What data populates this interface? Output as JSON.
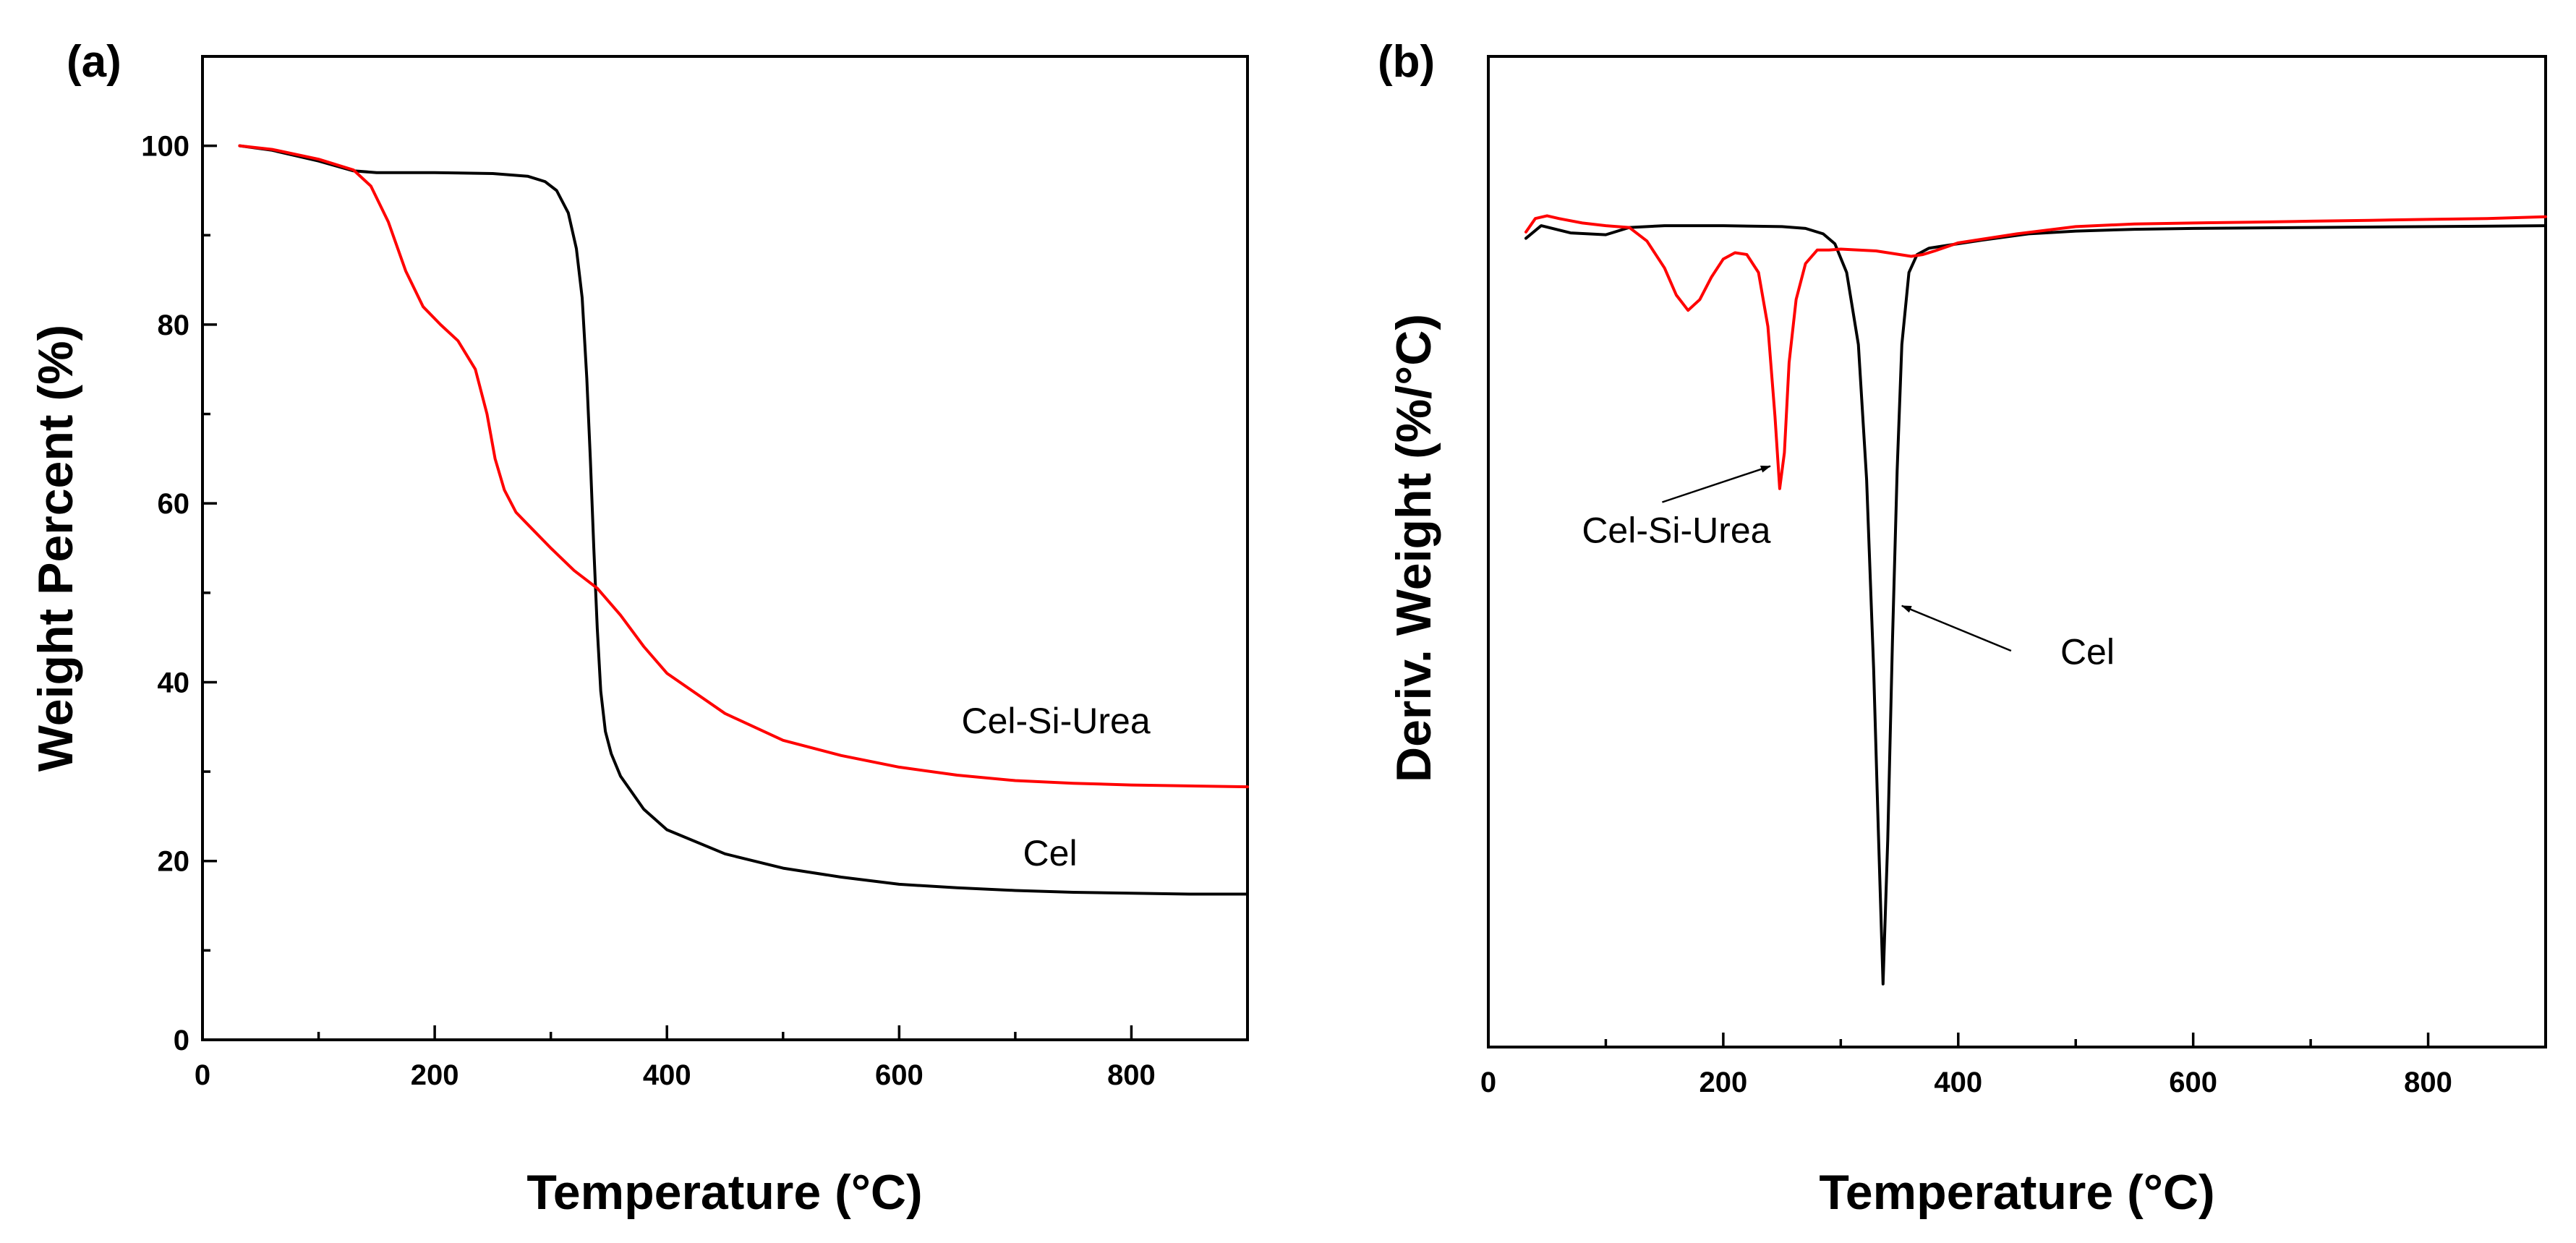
{
  "chart_data": [
    {
      "id": "a",
      "panel_label": "(a)",
      "type": "line",
      "title": "",
      "xlabel": "Temperature (°C)",
      "ylabel": "Weight Percent (%)",
      "xlim": [
        0,
        900
      ],
      "ylim": [
        0,
        110
      ],
      "xticks": [
        0,
        200,
        400,
        600,
        800
      ],
      "xtick_labels": [
        "0",
        "200",
        "400",
        "600",
        "800"
      ],
      "yticks": [
        0,
        20,
        40,
        60,
        80,
        100
      ],
      "ytick_labels": [
        "0",
        "20",
        "40",
        "60",
        "80",
        "100"
      ],
      "grid": false,
      "series": [
        {
          "name": "Cel",
          "color": "#000000",
          "x": [
            32,
            60,
            100,
            130,
            150,
            200,
            250,
            280,
            295,
            305,
            315,
            322,
            327,
            331,
            334,
            337,
            340,
            343,
            347,
            352,
            360,
            380,
            400,
            450,
            500,
            550,
            600,
            650,
            700,
            750,
            800,
            850,
            900
          ],
          "y": [
            100,
            99.5,
            98.3,
            97.2,
            97.0,
            97.0,
            96.9,
            96.6,
            96.0,
            95.0,
            92.5,
            88.5,
            83.0,
            74.0,
            65.0,
            55.0,
            46.0,
            39.0,
            34.5,
            32.0,
            29.5,
            25.8,
            23.5,
            20.8,
            19.2,
            18.2,
            17.4,
            17.0,
            16.7,
            16.5,
            16.4,
            16.3,
            16.3
          ]
        },
        {
          "name": "Cel-Si-Urea",
          "color": "#ff0000",
          "x": [
            32,
            60,
            100,
            130,
            145,
            160,
            175,
            190,
            205,
            220,
            235,
            245,
            252,
            260,
            270,
            285,
            300,
            320,
            340,
            360,
            380,
            400,
            450,
            500,
            550,
            600,
            650,
            700,
            750,
            800,
            850,
            900
          ],
          "y": [
            100,
            99.6,
            98.5,
            97.3,
            95.5,
            91.5,
            86.0,
            82.0,
            80.0,
            78.2,
            75.0,
            70.0,
            65.0,
            61.5,
            59.0,
            57.0,
            55.0,
            52.5,
            50.5,
            47.5,
            44.0,
            41.0,
            36.5,
            33.5,
            31.8,
            30.5,
            29.6,
            29.0,
            28.7,
            28.5,
            28.4,
            28.3
          ]
        }
      ],
      "annotations": [
        {
          "text": "Cel-Si-Urea",
          "x": 735,
          "y": 34.3
        },
        {
          "text": "Cel",
          "x": 730,
          "y": 19.5
        }
      ]
    },
    {
      "id": "b",
      "panel_label": "(b)",
      "type": "line",
      "title": "",
      "xlabel": "Temperature (°C)",
      "ylabel": "Deriv. Weight (%/°C)",
      "xlim": [
        0,
        900
      ],
      "ylim": [
        -1,
        0.1
      ],
      "xticks": [
        0,
        200,
        400,
        600,
        800
      ],
      "xtick_labels": [
        "0",
        "200",
        "400",
        "600",
        "800"
      ],
      "yticks": [],
      "ytick_labels": [],
      "grid": false,
      "series": [
        {
          "name": "Cel",
          "color": "#000000",
          "x": [
            32,
            45,
            70,
            100,
            120,
            150,
            200,
            250,
            270,
            285,
            295,
            305,
            315,
            322,
            328,
            332,
            336,
            340,
            344,
            348,
            352,
            358,
            365,
            375,
            390,
            420,
            460,
            500,
            550,
            600,
            700,
            800,
            900
          ],
          "y": [
            -0.102,
            -0.088,
            -0.096,
            -0.098,
            -0.09,
            -0.088,
            -0.088,
            -0.089,
            -0.091,
            -0.097,
            -0.108,
            -0.14,
            -0.22,
            -0.37,
            -0.58,
            -0.76,
            -0.93,
            -0.77,
            -0.55,
            -0.36,
            -0.22,
            -0.14,
            -0.12,
            -0.113,
            -0.11,
            -0.104,
            -0.097,
            -0.094,
            -0.092,
            -0.091,
            -0.09,
            -0.089,
            -0.088
          ]
        },
        {
          "name": "Cel-Si-Urea",
          "color": "#ff0000",
          "x": [
            32,
            40,
            50,
            60,
            80,
            100,
            120,
            135,
            150,
            160,
            170,
            180,
            190,
            200,
            210,
            220,
            230,
            238,
            244,
            248,
            252,
            256,
            262,
            270,
            280,
            290,
            300,
            330,
            360,
            370,
            380,
            400,
            450,
            500,
            550,
            600,
            650,
            700,
            750,
            800,
            850,
            900
          ],
          "y": [
            -0.095,
            -0.08,
            -0.077,
            -0.08,
            -0.085,
            -0.088,
            -0.09,
            -0.105,
            -0.135,
            -0.165,
            -0.182,
            -0.17,
            -0.145,
            -0.125,
            -0.118,
            -0.12,
            -0.14,
            -0.2,
            -0.3,
            -0.38,
            -0.34,
            -0.24,
            -0.17,
            -0.13,
            -0.115,
            -0.115,
            -0.114,
            -0.116,
            -0.122,
            -0.12,
            -0.116,
            -0.107,
            -0.097,
            -0.089,
            -0.086,
            -0.085,
            -0.084,
            -0.083,
            -0.082,
            -0.081,
            -0.08,
            -0.078
          ]
        }
      ],
      "annotations": [
        {
          "text": "Cel-Si-Urea",
          "x": 160,
          "y": -0.44,
          "arrow_to": [
            240,
            -0.355
          ],
          "arrow_from": [
            148,
            -0.395
          ]
        },
        {
          "text": "Cel",
          "x": 510,
          "y": -0.575,
          "arrow_to": [
            352,
            -0.51
          ],
          "arrow_from": [
            445,
            -0.56
          ]
        }
      ]
    }
  ]
}
